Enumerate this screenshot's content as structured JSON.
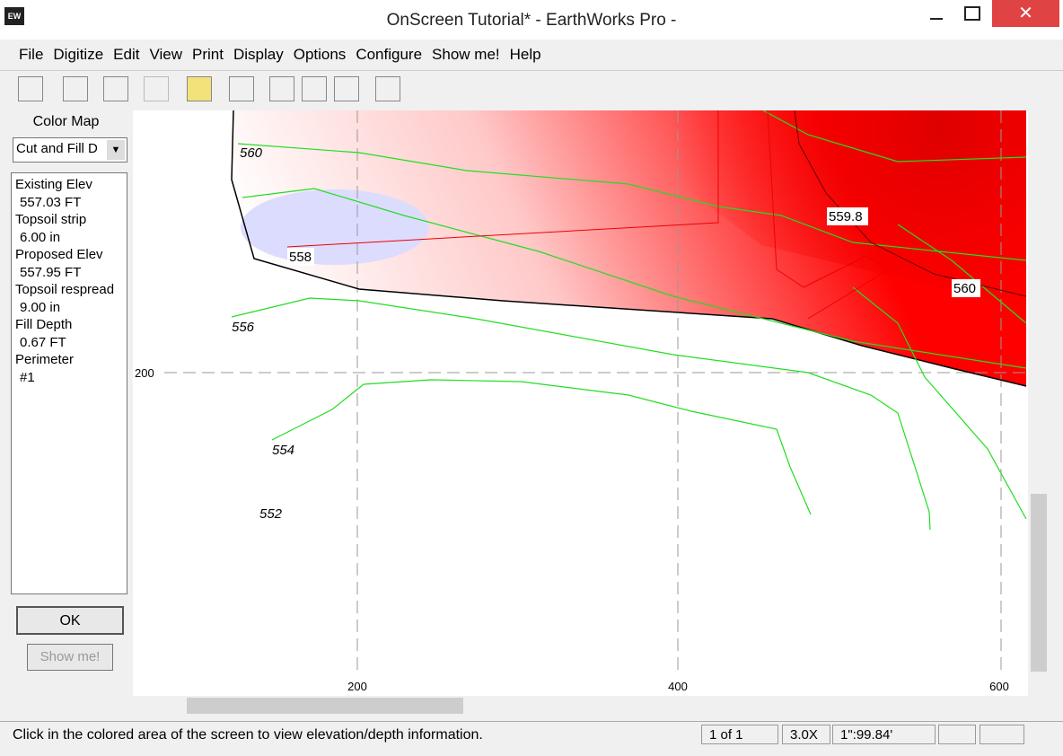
{
  "window": {
    "icon": "EW",
    "title": "OnScreen Tutorial* - EarthWorks Pro -"
  },
  "menu": [
    "File",
    "Digitize",
    "Edit",
    "View",
    "Print",
    "Display",
    "Options",
    "Configure",
    "Show me!",
    "Help"
  ],
  "side_panel": {
    "heading": "Color Map",
    "dropdown": "Cut and Fill D",
    "info": [
      "Existing Elev",
      "557.03 FT",
      "Topsoil strip",
      "6.00 in",
      "Proposed Elev",
      "557.95 FT",
      "Topsoil respread",
      "9.00 in",
      "Fill Depth",
      "0.67 FT",
      "Perimeter",
      "#1"
    ],
    "ok": "OK",
    "show_me": "Show me!"
  },
  "map": {
    "contour_labels": [
      "560",
      "558",
      "556",
      "554",
      "552",
      "559.8",
      "560"
    ],
    "x_axis_labels": [
      "200",
      "400",
      "600"
    ],
    "y_axis_labels": [
      "200"
    ]
  },
  "status": {
    "message": "Click in the colored area of the screen to view elevation/depth information.",
    "page": "1 of 1",
    "zoom": "3.0X",
    "scale": "1\":99.84'"
  }
}
